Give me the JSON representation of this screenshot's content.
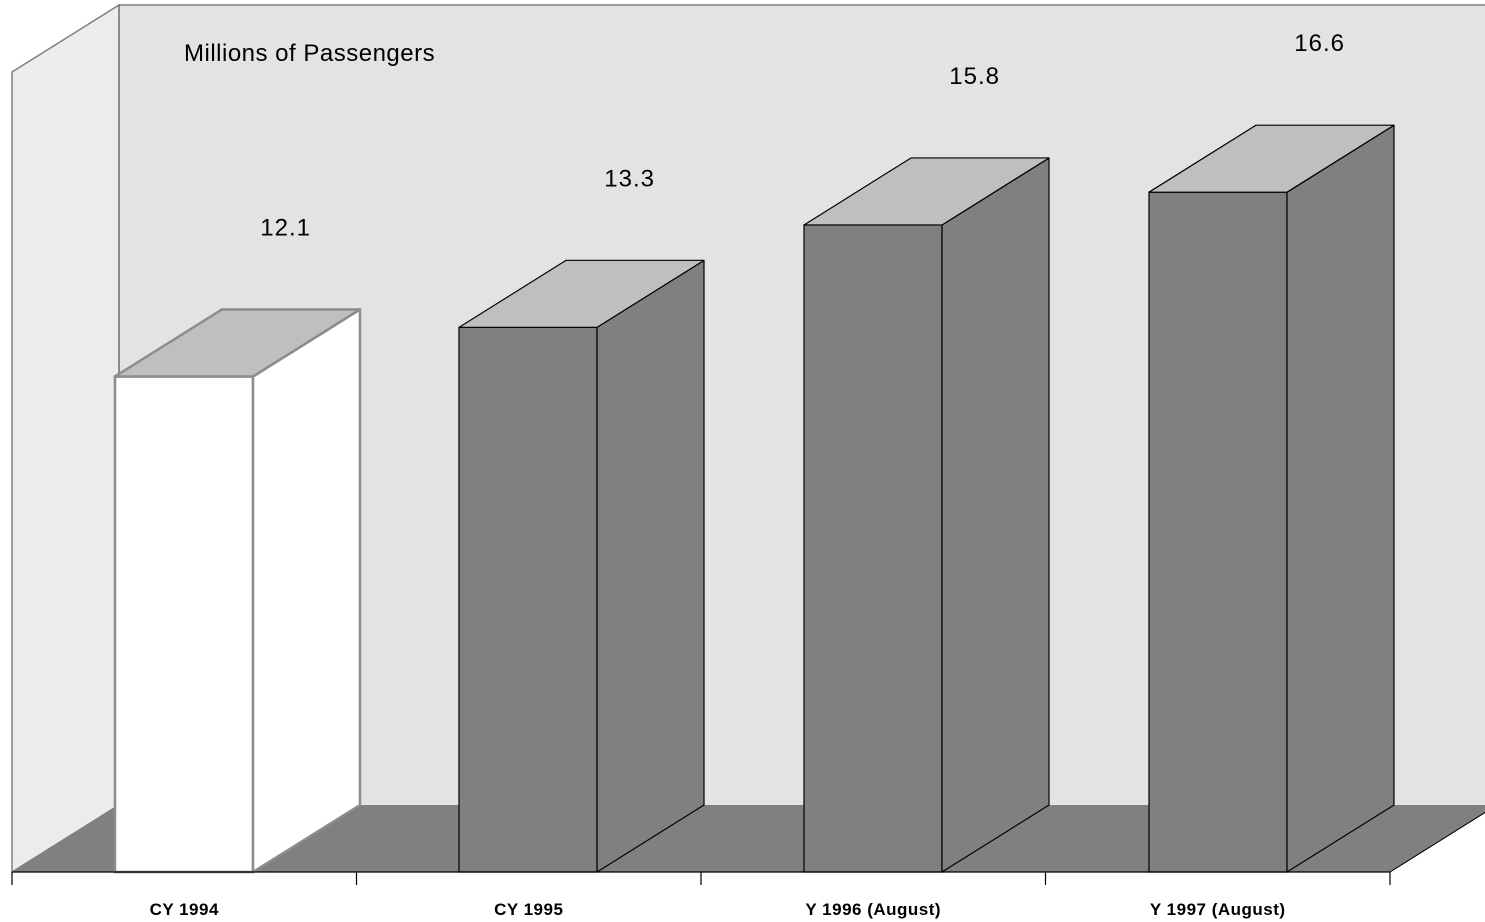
{
  "chart_data": {
    "type": "bar",
    "style": "3d",
    "unit_label": "Millions of Passengers",
    "categories": [
      "CY 1994",
      "CY 1995",
      "Y 1996 (August)",
      "Y 1997 (August)"
    ],
    "values": [
      12.1,
      13.3,
      15.8,
      16.6
    ],
    "value_labels": [
      "12.1",
      "13.3",
      "15.8",
      "16.6"
    ],
    "ylim": [
      0,
      21
    ],
    "grid": false,
    "legend": "none",
    "bar_styles": [
      "outline",
      "filled",
      "filled",
      "filled"
    ]
  },
  "colors": {
    "wall_back": "#e3e3e3",
    "wall_side": "#ececec",
    "floor": "#808080",
    "bar_front": "#808080",
    "bar_side": "#808080",
    "bar_top": "#bfbfbf",
    "outline_bar_front": "#ffffff",
    "outline_bar_stroke": "#8c8c8c",
    "wall_stroke": "#7f7f7f",
    "axis": "#000000"
  }
}
